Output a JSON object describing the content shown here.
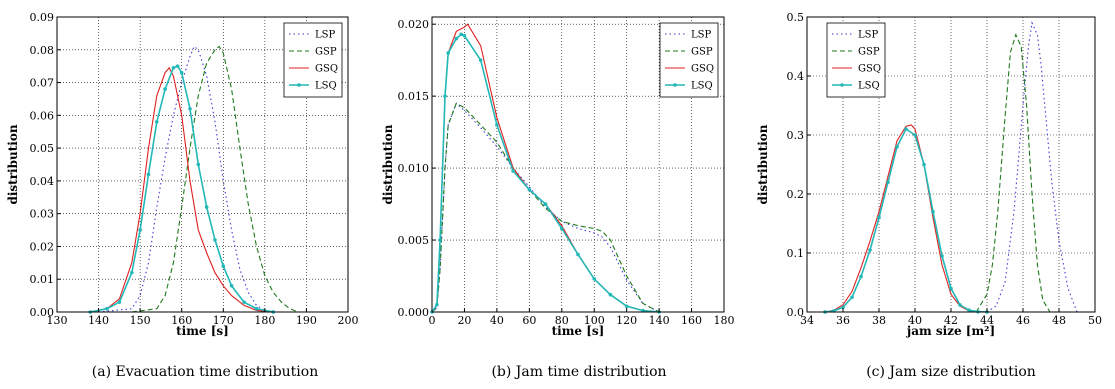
{
  "figure": {
    "captions": [
      "(a) Evacuation time distribution",
      "(b) Jam time distribution",
      "(c) Jam size distribution"
    ]
  },
  "styles": {
    "LSP": {
      "color": "#3b3bd6",
      "dash": "1.5,3",
      "marker": false
    },
    "GSP": {
      "color": "#1e7a1e",
      "dash": "5,3",
      "marker": false
    },
    "GSQ": {
      "color": "#e02020",
      "dash": "",
      "marker": false
    },
    "LSQ": {
      "color": "#22b8b8",
      "dash": "",
      "marker": true
    }
  },
  "chart_data": [
    {
      "type": "line",
      "xlabel": "time [s]",
      "ylabel": "distribution",
      "xlim": [
        130,
        200
      ],
      "ylim": [
        0,
        0.09
      ],
      "xticks": [
        130,
        140,
        150,
        160,
        170,
        180,
        190,
        200
      ],
      "xtick_labels": [
        "130",
        "140",
        "150",
        "160",
        "170",
        "180",
        "190",
        "200"
      ],
      "yticks": [
        0,
        0.01,
        0.02,
        0.03,
        0.04,
        0.05,
        0.06,
        0.07,
        0.08,
        0.09
      ],
      "ytick_labels": [
        "0.00",
        "0.01",
        "0.02",
        "0.03",
        "0.04",
        "0.05",
        "0.06",
        "0.07",
        "0.08",
        "0.09"
      ],
      "grid": true,
      "legend_position": "top-right",
      "series": [
        {
          "name": "LSP",
          "x": [
            140,
            148,
            150,
            152,
            154,
            156,
            158,
            160,
            162,
            163,
            164,
            166,
            168,
            170,
            172,
            174,
            176,
            178,
            180,
            182
          ],
          "y": [
            0,
            0.001,
            0.005,
            0.015,
            0.032,
            0.047,
            0.06,
            0.07,
            0.078,
            0.081,
            0.08,
            0.072,
            0.058,
            0.04,
            0.025,
            0.013,
            0.006,
            0.002,
            0.0005,
            0
          ]
        },
        {
          "name": "GSP",
          "x": [
            148,
            154,
            156,
            158,
            160,
            162,
            164,
            166,
            168,
            169,
            170,
            172,
            174,
            176,
            178,
            180,
            182,
            184,
            186,
            188
          ],
          "y": [
            0,
            0.001,
            0.005,
            0.015,
            0.032,
            0.05,
            0.066,
            0.076,
            0.08,
            0.081,
            0.079,
            0.068,
            0.05,
            0.033,
            0.02,
            0.011,
            0.006,
            0.003,
            0.001,
            0
          ]
        },
        {
          "name": "GSQ",
          "x": [
            138,
            142,
            145,
            148,
            150,
            152,
            154,
            156,
            157,
            158,
            160,
            162,
            164,
            166,
            168,
            170,
            172,
            175,
            178,
            182
          ],
          "y": [
            0,
            0.001,
            0.004,
            0.015,
            0.03,
            0.05,
            0.066,
            0.073,
            0.0745,
            0.072,
            0.06,
            0.04,
            0.025,
            0.018,
            0.012,
            0.008,
            0.005,
            0.002,
            0.0005,
            0
          ]
        },
        {
          "name": "LSQ",
          "x": [
            138,
            142,
            145,
            148,
            150,
            152,
            154,
            156,
            158,
            159,
            160,
            162,
            164,
            166,
            168,
            170,
            172,
            175,
            178,
            182
          ],
          "y": [
            0,
            0.001,
            0.003,
            0.012,
            0.025,
            0.042,
            0.058,
            0.068,
            0.0745,
            0.075,
            0.073,
            0.062,
            0.045,
            0.032,
            0.022,
            0.014,
            0.008,
            0.003,
            0.001,
            0
          ]
        }
      ]
    },
    {
      "type": "line",
      "xlabel": "time [s]",
      "ylabel": "distribution",
      "xlim": [
        0,
        180
      ],
      "ylim": [
        0,
        0.0205
      ],
      "xticks": [
        0,
        20,
        40,
        60,
        80,
        100,
        120,
        140,
        160,
        180
      ],
      "xtick_labels": [
        "0",
        "20",
        "40",
        "60",
        "80",
        "100",
        "120",
        "140",
        "160",
        "180"
      ],
      "yticks": [
        0,
        0.005,
        0.01,
        0.015,
        0.02
      ],
      "ytick_labels": [
        "0.000",
        "0.005",
        "0.010",
        "0.015",
        "0.020"
      ],
      "grid": true,
      "legend_position": "top-right",
      "series": [
        {
          "name": "LSP",
          "x": [
            0,
            3,
            5,
            8,
            10,
            15,
            20,
            30,
            40,
            50,
            60,
            70,
            80,
            90,
            100,
            105,
            110,
            120,
            130,
            140
          ],
          "y": [
            0,
            0.0003,
            0.003,
            0.01,
            0.013,
            0.0145,
            0.014,
            0.0128,
            0.0115,
            0.01,
            0.0087,
            0.0073,
            0.0063,
            0.0058,
            0.0055,
            0.0052,
            0.0045,
            0.0022,
            0.0006,
            0
          ]
        },
        {
          "name": "GSP",
          "x": [
            0,
            3,
            5,
            8,
            10,
            15,
            20,
            30,
            40,
            50,
            60,
            70,
            80,
            90,
            100,
            105,
            110,
            120,
            130,
            140
          ],
          "y": [
            0,
            0.0003,
            0.003,
            0.01,
            0.013,
            0.0145,
            0.0142,
            0.013,
            0.0118,
            0.01,
            0.0085,
            0.0072,
            0.0063,
            0.006,
            0.0058,
            0.0056,
            0.005,
            0.0025,
            0.0006,
            0
          ]
        },
        {
          "name": "GSQ",
          "x": [
            0,
            3,
            5,
            8,
            10,
            15,
            20,
            22,
            30,
            40,
            50,
            60,
            70,
            80,
            90,
            100,
            110,
            120,
            130,
            140
          ],
          "y": [
            0,
            0.0005,
            0.005,
            0.015,
            0.018,
            0.0195,
            0.0198,
            0.02,
            0.0185,
            0.0135,
            0.01,
            0.0085,
            0.0075,
            0.006,
            0.004,
            0.0023,
            0.0012,
            0.0004,
            0.0001,
            0
          ]
        },
        {
          "name": "LSQ",
          "x": [
            0,
            3,
            5,
            8,
            10,
            15,
            18,
            20,
            30,
            40,
            50,
            60,
            70,
            80,
            90,
            100,
            110,
            120,
            130,
            140
          ],
          "y": [
            0,
            0.0005,
            0.005,
            0.015,
            0.018,
            0.019,
            0.0193,
            0.0192,
            0.0175,
            0.013,
            0.0098,
            0.0085,
            0.0075,
            0.0058,
            0.004,
            0.0023,
            0.0012,
            0.0004,
            0.0001,
            0
          ]
        }
      ]
    },
    {
      "type": "line",
      "xlabel": "jam size [m²]",
      "ylabel": "distribution",
      "xlim": [
        34,
        50
      ],
      "ylim": [
        0,
        0.5
      ],
      "xticks": [
        34,
        36,
        38,
        40,
        42,
        44,
        46,
        48,
        50
      ],
      "xtick_labels": [
        "34",
        "36",
        "38",
        "40",
        "42",
        "44",
        "46",
        "48",
        "50"
      ],
      "yticks": [
        0,
        0.1,
        0.2,
        0.3,
        0.4,
        0.5
      ],
      "ytick_labels": [
        "0.0",
        "0.1",
        "0.2",
        "0.3",
        "0.4",
        "0.5"
      ],
      "grid": true,
      "legend_position": "top-left",
      "series": [
        {
          "name": "LSP",
          "x": [
            44,
            44.5,
            45,
            45.5,
            46,
            46.3,
            46.5,
            46.8,
            47,
            47.3,
            47.6,
            48,
            48.5,
            49
          ],
          "y": [
            0,
            0.01,
            0.05,
            0.17,
            0.35,
            0.45,
            0.49,
            0.47,
            0.42,
            0.32,
            0.22,
            0.12,
            0.04,
            0
          ]
        },
        {
          "name": "GSP",
          "x": [
            43.4,
            44,
            44.3,
            44.6,
            45,
            45.3,
            45.6,
            45.9,
            46.2,
            46.5,
            46.8,
            47.1,
            47.5
          ],
          "y": [
            0,
            0.03,
            0.08,
            0.17,
            0.33,
            0.44,
            0.47,
            0.45,
            0.35,
            0.2,
            0.08,
            0.02,
            0
          ]
        },
        {
          "name": "GSQ",
          "x": [
            35,
            35.5,
            36,
            36.5,
            37,
            37.5,
            38,
            38.5,
            39,
            39.5,
            39.8,
            40,
            40.5,
            41,
            41.5,
            42,
            42.5,
            43,
            43.5
          ],
          "y": [
            0,
            0.003,
            0.012,
            0.035,
            0.075,
            0.12,
            0.17,
            0.23,
            0.29,
            0.315,
            0.317,
            0.31,
            0.25,
            0.16,
            0.08,
            0.03,
            0.01,
            0.002,
            0
          ]
        },
        {
          "name": "LSQ",
          "x": [
            35,
            35.5,
            36,
            36.5,
            37,
            37.5,
            38,
            38.5,
            39,
            39.5,
            40,
            40.5,
            41,
            41.5,
            42,
            42.5,
            43,
            43.5,
            44
          ],
          "y": [
            0,
            0.002,
            0.008,
            0.025,
            0.06,
            0.105,
            0.16,
            0.22,
            0.28,
            0.31,
            0.3,
            0.25,
            0.17,
            0.095,
            0.04,
            0.012,
            0.003,
            0.0005,
            0
          ]
        }
      ]
    }
  ]
}
